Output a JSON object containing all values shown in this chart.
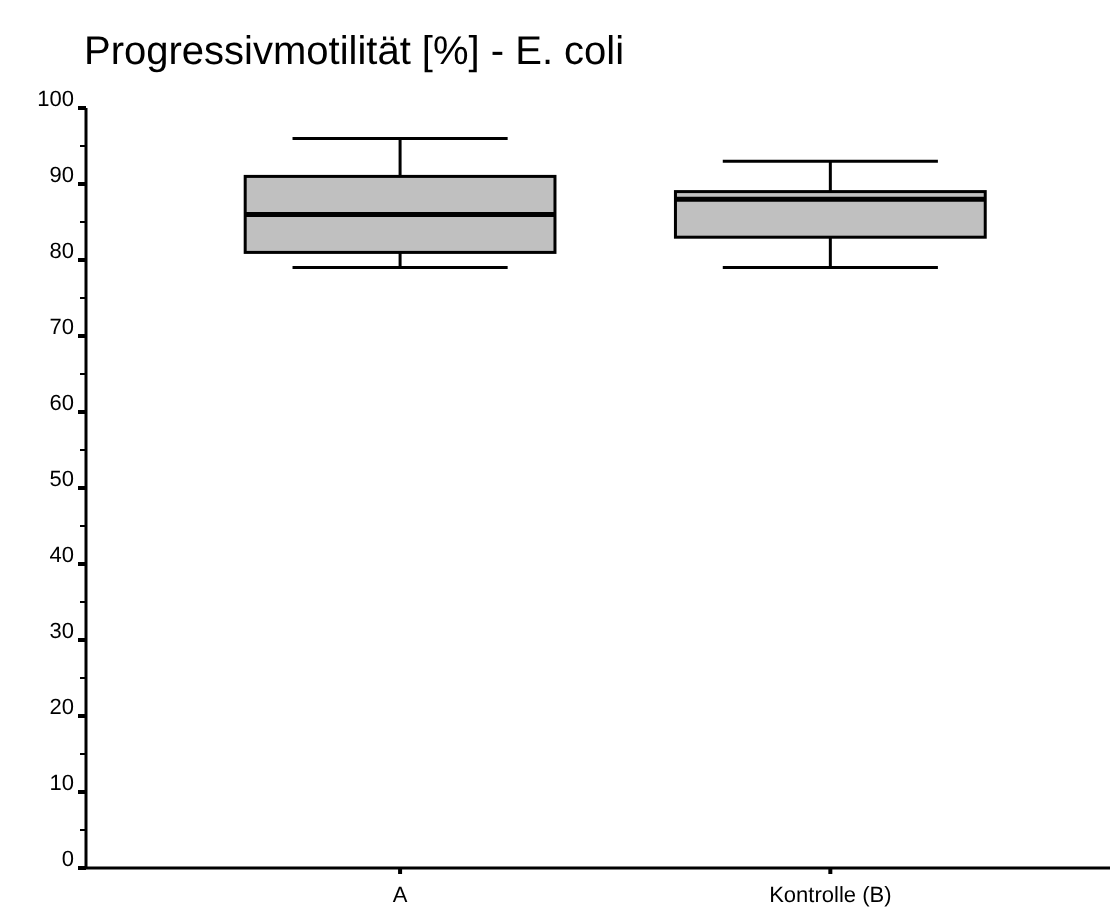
{
  "chart_data": {
    "type": "box",
    "title": "Progressivmotilität [%] - E.  coli",
    "categories": [
      "A",
      "Kontrolle (B)"
    ],
    "boxes": [
      {
        "low": 79,
        "q1": 81,
        "median": 86,
        "q3": 91,
        "high": 96
      },
      {
        "low": 79,
        "q1": 83,
        "median": 88,
        "q3": 89,
        "high": 93
      }
    ],
    "color": "#c0c0c0",
    "ylim": [
      0,
      100
    ],
    "yticks": [
      0,
      {
        "value": 5,
        "label": null
      },
      10,
      {
        "value": 15,
        "label": null
      },
      20,
      {
        "value": 25,
        "label": null
      },
      30,
      {
        "value": 35,
        "label": null
      },
      40,
      {
        "value": 45,
        "label": null
      },
      50,
      {
        "value": 55,
        "label": null
      },
      60,
      {
        "value": 65,
        "label": null
      },
      70,
      {
        "value": 75,
        "label": null
      },
      80,
      {
        "value": 85,
        "label": null
      },
      90,
      {
        "value": 95,
        "label": null
      },
      100
    ]
  }
}
